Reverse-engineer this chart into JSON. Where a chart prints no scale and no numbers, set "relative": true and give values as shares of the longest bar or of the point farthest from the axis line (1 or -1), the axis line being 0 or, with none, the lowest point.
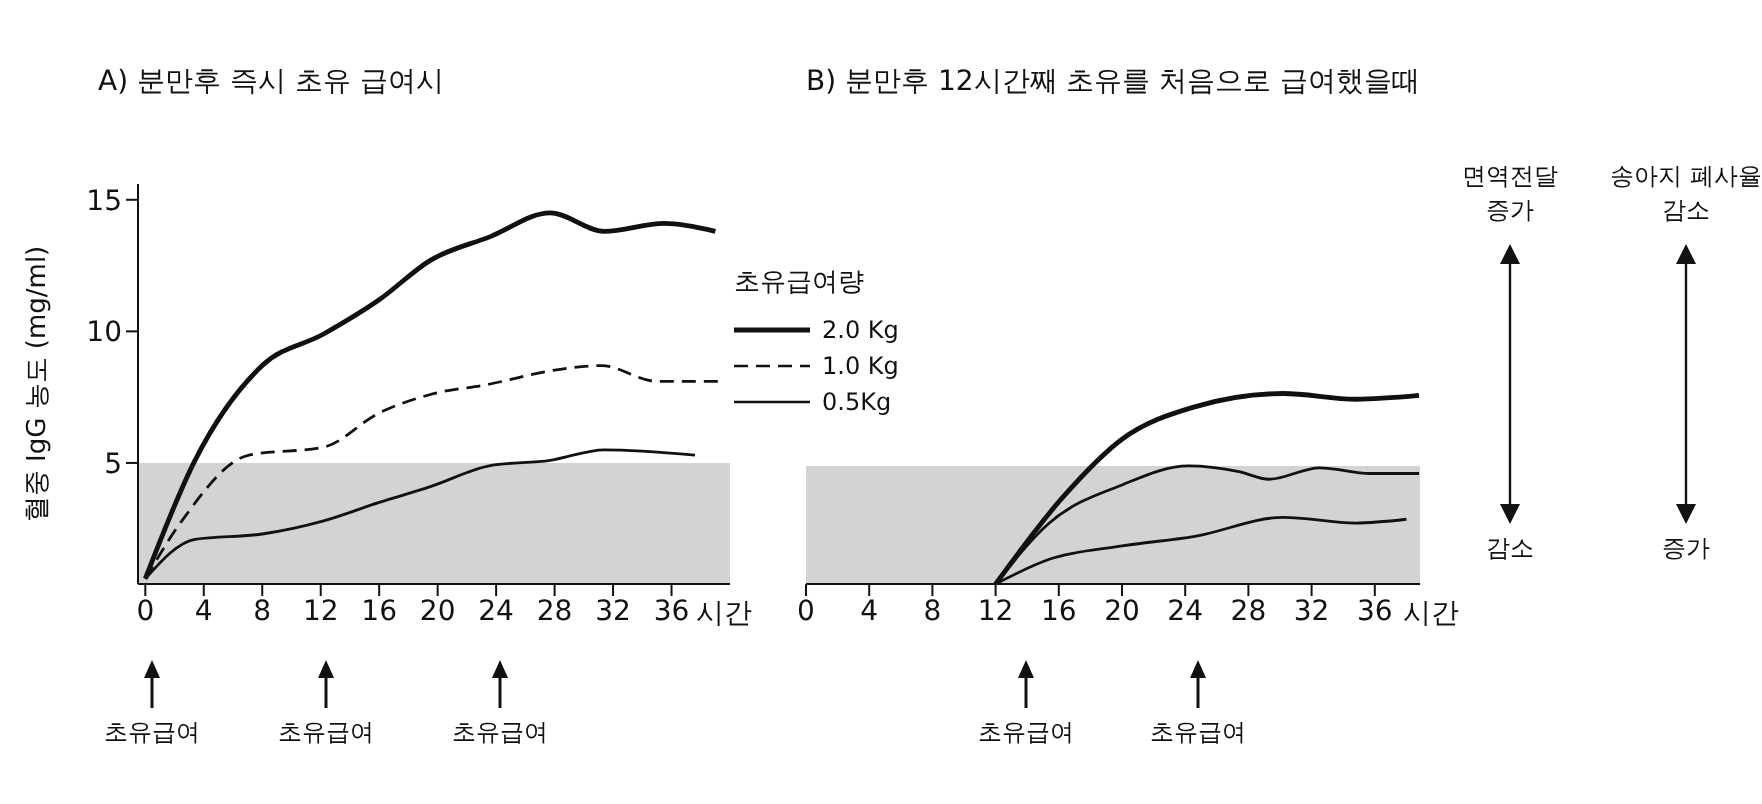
{
  "chart_data": [
    {
      "type": "line",
      "title": "A) 분만후 즉시 초유 급여시",
      "xlabel": "시간",
      "ylabel": "혈중 IgG 농도 (mg/ml)",
      "legend_title": "초유급여량",
      "legend": "right",
      "grid": false,
      "marker": "none",
      "xlim": [
        -0.5,
        40
      ],
      "xticks": [
        0,
        4,
        8,
        12,
        16,
        20,
        24,
        28,
        32,
        36
      ],
      "ylim": [
        0.4,
        15.6
      ],
      "yticks": [
        5,
        10,
        15
      ],
      "bands": [
        {
          "axis": "y",
          "from": 0.4,
          "to": 5,
          "color": "#c8c8c8"
        }
      ],
      "annotations": [
        "초유급여",
        "초유급여",
        "초유급여"
      ],
      "series": [
        {
          "name": "2.0 Kg",
          "color": "#111111",
          "line_style": "solid",
          "x": [
            0,
            3.4,
            8,
            12.2,
            16,
            19.5,
            23.6,
            27.7,
            31.4,
            35.5,
            39
          ],
          "values": [
            0.6,
            5.1,
            8.7,
            9.9,
            11.2,
            12.7,
            13.6,
            14.5,
            13.8,
            14.1,
            13.8
          ]
        },
        {
          "name": "1.0 Kg",
          "color": "#111111",
          "line_style": "dashed",
          "x": [
            0,
            2.5,
            7.1,
            12.2,
            16,
            19.5,
            23.6,
            27.7,
            31.2,
            35,
            39.5
          ],
          "values": [
            0.6,
            2.8,
            5.3,
            5.6,
            6.9,
            7.6,
            8.0,
            8.5,
            8.7,
            8.1,
            8.1
          ]
        },
        {
          "name": "0.5Kg",
          "color": "#111111",
          "line_style": "solid",
          "x": [
            0,
            3.4,
            8,
            12.2,
            16,
            19.5,
            23.6,
            27.7,
            31.4,
            37.6
          ],
          "values": [
            0.6,
            2.1,
            2.3,
            2.8,
            3.5,
            4.1,
            4.9,
            5.1,
            5.5,
            5.3
          ]
        }
      ]
    },
    {
      "type": "line",
      "title": "B) 분만후 12시간째 초유를 처음으로 급여했을때",
      "xlabel": "시간",
      "relative": true,
      "grid": false,
      "marker": "none",
      "xlim": [
        0,
        40
      ],
      "xticks": [
        0,
        4,
        8,
        12,
        16,
        20,
        24,
        28,
        32,
        36
      ],
      "bands": [
        {
          "axis": "y",
          "from": 0,
          "to": 0.62,
          "color": "#c8c8c8"
        }
      ],
      "annotations": [
        "초유급여",
        "초유급여",
        "면역전달 증가",
        "감소",
        "송아지 폐사율 감소",
        "증가"
      ],
      "series": [
        {
          "color": "#111111",
          "line_style": "solid",
          "x": [
            12,
            16.3,
            20,
            24.6,
            30.2,
            34.8,
            38.8
          ],
          "values": [
            0,
            0.46,
            0.76,
            0.93,
            1,
            0.97,
            0.99
          ]
        },
        {
          "color": "#111111",
          "line_style": "solid",
          "x": [
            12,
            15.4,
            20,
            24.2,
            27.4,
            29.3,
            32.5,
            35.7,
            38.8
          ],
          "values": [
            0,
            0.32,
            0.52,
            0.62,
            0.59,
            0.55,
            0.61,
            0.58,
            0.58
          ]
        },
        {
          "color": "#111111",
          "line_style": "solid",
          "x": [
            12,
            15.4,
            20,
            24.6,
            30.2,
            34.8,
            38
          ],
          "values": [
            0,
            0.13,
            0.2,
            0.25,
            0.35,
            0.32,
            0.34
          ]
        }
      ]
    }
  ]
}
